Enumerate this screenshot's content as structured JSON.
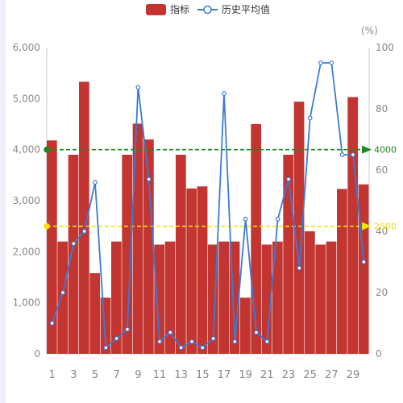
{
  "chart_data": {
    "type": "bar",
    "legend": [
      {
        "name": "指标",
        "kind": "bar",
        "color": "#c23531"
      },
      {
        "name": "历史平均值",
        "kind": "line",
        "color": "#3b7bd8"
      }
    ],
    "categories": [
      "1",
      "2",
      "3",
      "4",
      "5",
      "6",
      "7",
      "8",
      "9",
      "10",
      "11",
      "12",
      "13",
      "14",
      "15",
      "16",
      "17",
      "18",
      "19",
      "20",
      "21",
      "22",
      "23",
      "24",
      "25",
      "26",
      "27",
      "28",
      "29",
      "30"
    ],
    "x_tick_labels": [
      "1",
      "3",
      "5",
      "7",
      "9",
      "11",
      "13",
      "15",
      "17",
      "19",
      "21",
      "23",
      "25",
      "27",
      "29"
    ],
    "y_left": {
      "min": 0,
      "max": 6000,
      "ticks": [
        "0",
        "1,000",
        "2,000",
        "3,000",
        "4,000",
        "5,000",
        "6,000"
      ]
    },
    "y_right": {
      "min": 0,
      "max": 100,
      "unit": "(%)",
      "ticks": [
        "0",
        "20",
        "40",
        "60",
        "80",
        "100"
      ]
    },
    "series": [
      {
        "name": "指标",
        "type": "bar",
        "axis": "left",
        "color": "#c23531",
        "values": [
          4180,
          2200,
          3900,
          5330,
          1580,
          1100,
          2200,
          3900,
          4510,
          4200,
          2140,
          2200,
          3900,
          3240,
          3280,
          2140,
          2200,
          2200,
          1100,
          4500,
          2140,
          2200,
          3900,
          4940,
          2400,
          2140,
          2200,
          3230,
          5030,
          3320
        ]
      },
      {
        "name": "历史平均值",
        "type": "line",
        "axis": "right",
        "color": "#3b7bd8",
        "values": [
          10,
          20,
          36,
          40,
          56,
          2,
          5,
          8,
          87,
          57,
          4,
          7,
          2,
          4,
          2,
          5,
          85,
          4,
          44,
          7,
          4,
          44,
          57,
          28,
          77,
          95,
          95,
          65,
          65,
          30
        ]
      }
    ],
    "reference_lines": [
      {
        "value": 4000,
        "label": "4000",
        "color": "#1a8a1a",
        "axis": "left"
      },
      {
        "value": 2500,
        "label": "2500",
        "color": "#f5e10a",
        "axis": "left"
      }
    ],
    "grid": false
  }
}
